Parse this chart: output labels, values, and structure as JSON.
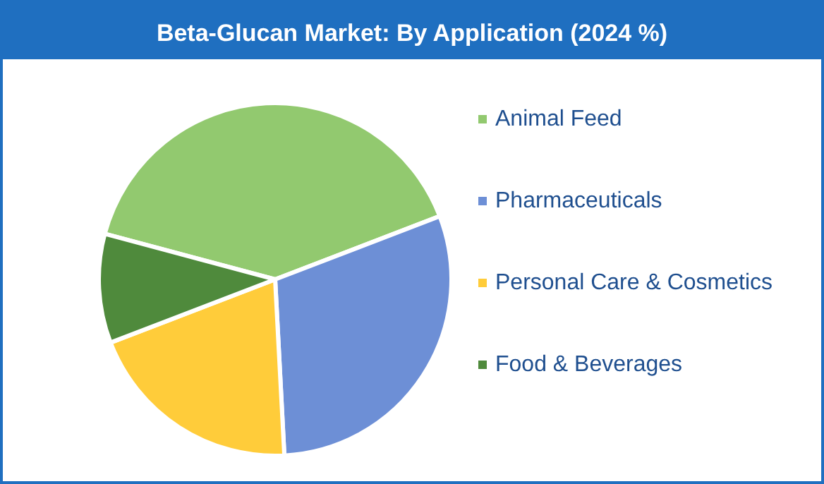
{
  "chart_data": {
    "type": "pie",
    "title": "Beta-Glucan Market: By Application (2024 %)",
    "categories": [
      "Animal Feed",
      "Pharmaceuticals",
      "Personal Care & Cosmetics",
      "Food & Beverages"
    ],
    "values": [
      40,
      30,
      20,
      10
    ],
    "colors": [
      "#92c96f",
      "#6d8fd6",
      "#ffcc3a",
      "#4f8a3c"
    ],
    "legend": "right"
  }
}
